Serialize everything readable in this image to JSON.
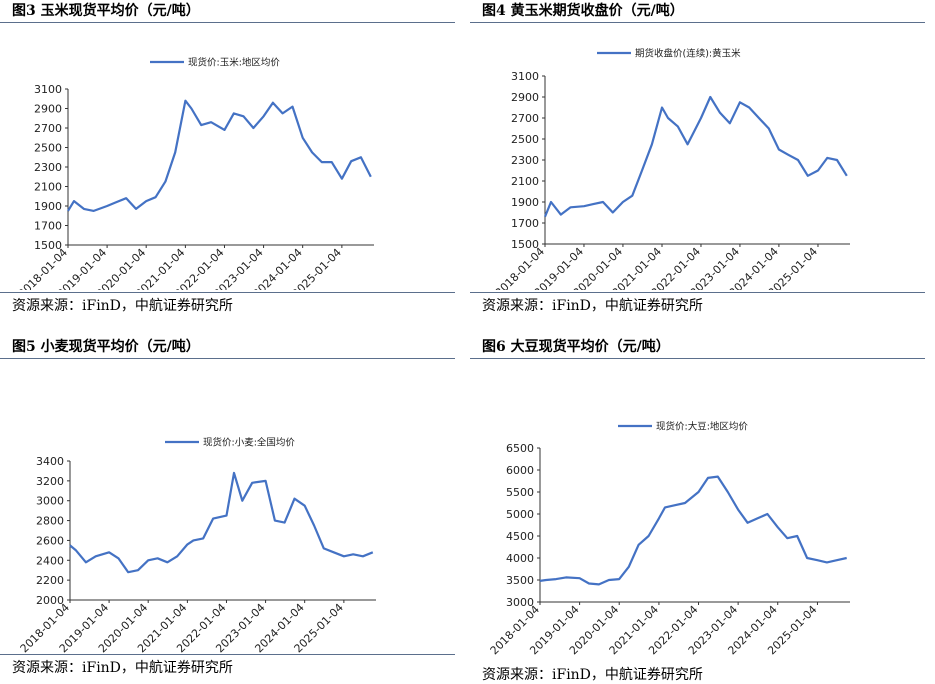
{
  "panels": [
    {
      "title": "图3  玉米现货平均价（元/吨）",
      "source": "资源来源：iFinD，中航证券研究所"
    },
    {
      "title": "图4  黄玉米期货收盘价（元/吨）",
      "source": "资源来源：iFinD，中航证券研究所"
    },
    {
      "title": "图5  小麦现货平均价（元/吨）",
      "source": "资源来源：iFinD，中航证券研究所"
    },
    {
      "title": "图6  大豆现货平均价（元/吨）",
      "source": "资源来源：iFinD，中航证券研究所"
    }
  ],
  "chart_data": [
    {
      "type": "line",
      "title": "",
      "legend": "top-center",
      "grid": false,
      "line_color": "#4472C4",
      "ylim": [
        1500,
        3100
      ],
      "yticks": [
        1500,
        1700,
        1900,
        2100,
        2300,
        2500,
        2700,
        2900,
        3100
      ],
      "xlim": [
        "2018-01-04",
        "2025-10-31"
      ],
      "xticks": [
        "2018-01-04",
        "2019-01-04",
        "2020-01-04",
        "2021-01-04",
        "2022-01-04",
        "2023-01-04",
        "2024-01-04",
        "2025-01-04"
      ],
      "series": [
        {
          "name": "现货价:玉米:地区均价",
          "x": [
            "2018-01-04",
            "2018-03-01",
            "2018-06-01",
            "2018-09-01",
            "2019-01-04",
            "2019-04-01",
            "2019-07-01",
            "2019-10-01",
            "2020-01-04",
            "2020-04-01",
            "2020-07-01",
            "2020-10-01",
            "2021-01-04",
            "2021-03-01",
            "2021-06-01",
            "2021-09-01",
            "2022-01-04",
            "2022-04-01",
            "2022-07-01",
            "2022-10-01",
            "2023-01-04",
            "2023-04-01",
            "2023-07-01",
            "2023-10-01",
            "2024-01-04",
            "2024-04-01",
            "2024-07-01",
            "2024-10-01",
            "2025-01-04",
            "2025-04-01",
            "2025-07-01",
            "2025-10-01"
          ],
          "y": [
            1850,
            1950,
            1870,
            1850,
            1900,
            1940,
            1980,
            1870,
            1950,
            1990,
            2150,
            2450,
            2980,
            2900,
            2730,
            2760,
            2680,
            2850,
            2820,
            2700,
            2820,
            2960,
            2850,
            2920,
            2600,
            2450,
            2350,
            2350,
            2180,
            2360,
            2400,
            2200
          ]
        }
      ]
    },
    {
      "type": "line",
      "title": "",
      "legend": "top-center",
      "grid": false,
      "line_color": "#4472C4",
      "ylim": [
        1500,
        3100
      ],
      "yticks": [
        1500,
        1700,
        1900,
        2100,
        2300,
        2500,
        2700,
        2900,
        3100
      ],
      "xlim": [
        "2018-01-04",
        "2025-10-31"
      ],
      "xticks": [
        "2018-01-04",
        "2019-01-04",
        "2020-01-04",
        "2021-01-04",
        "2022-01-04",
        "2023-01-04",
        "2024-01-04",
        "2025-01-04"
      ],
      "series": [
        {
          "name": "期货收盘价(连续):黄玉米",
          "x": [
            "2018-01-04",
            "2018-03-01",
            "2018-06-01",
            "2018-09-01",
            "2019-01-04",
            "2019-04-01",
            "2019-07-01",
            "2019-10-01",
            "2020-01-04",
            "2020-04-01",
            "2020-07-01",
            "2020-10-01",
            "2021-01-04",
            "2021-03-01",
            "2021-06-01",
            "2021-09-01",
            "2022-01-04",
            "2022-04-01",
            "2022-07-01",
            "2022-10-01",
            "2023-01-04",
            "2023-04-01",
            "2023-07-01",
            "2023-10-01",
            "2024-01-04",
            "2024-04-01",
            "2024-07-01",
            "2024-10-01",
            "2025-01-04",
            "2025-04-01",
            "2025-07-01",
            "2025-10-01"
          ],
          "y": [
            1760,
            1900,
            1780,
            1850,
            1860,
            1880,
            1900,
            1800,
            1900,
            1960,
            2200,
            2450,
            2800,
            2700,
            2620,
            2450,
            2700,
            2900,
            2750,
            2650,
            2850,
            2800,
            2700,
            2600,
            2400,
            2350,
            2300,
            2150,
            2200,
            2320,
            2300,
            2150
          ]
        }
      ]
    },
    {
      "type": "line",
      "title": "",
      "legend": "top-center",
      "grid": false,
      "line_color": "#4472C4",
      "ylim": [
        2000,
        3400
      ],
      "yticks": [
        2000,
        2200,
        2400,
        2600,
        2800,
        3000,
        3200,
        3400
      ],
      "xlim": [
        "2018-01-04",
        "2025-10-31"
      ],
      "xticks": [
        "2018-01-04",
        "2019-01-04",
        "2020-01-04",
        "2021-01-04",
        "2022-01-04",
        "2023-01-04",
        "2024-01-04",
        "2025-01-04"
      ],
      "series": [
        {
          "name": "现货价:小麦:全国均价",
          "x": [
            "2018-01-04",
            "2018-03-01",
            "2018-06-01",
            "2018-09-01",
            "2019-01-04",
            "2019-04-01",
            "2019-07-01",
            "2019-10-01",
            "2020-01-04",
            "2020-04-01",
            "2020-07-01",
            "2020-10-01",
            "2021-01-04",
            "2021-03-01",
            "2021-06-01",
            "2021-09-01",
            "2022-01-04",
            "2022-03-15",
            "2022-06-01",
            "2022-09-01",
            "2023-01-04",
            "2023-04-01",
            "2023-07-01",
            "2023-10-01",
            "2024-01-04",
            "2024-04-01",
            "2024-07-01",
            "2024-10-01",
            "2025-01-04",
            "2025-04-01",
            "2025-07-01",
            "2025-10-01"
          ],
          "y": [
            2550,
            2500,
            2380,
            2440,
            2480,
            2420,
            2280,
            2300,
            2400,
            2420,
            2380,
            2440,
            2560,
            2600,
            2620,
            2820,
            2850,
            3280,
            3000,
            3180,
            3200,
            2800,
            2780,
            3020,
            2950,
            2750,
            2520,
            2480,
            2440,
            2460,
            2440,
            2480
          ]
        }
      ]
    },
    {
      "type": "line",
      "title": "",
      "legend": "top-center",
      "grid": false,
      "line_color": "#4472C4",
      "ylim": [
        3000,
        6500
      ],
      "yticks": [
        3000,
        3500,
        4000,
        4500,
        5000,
        5500,
        6000,
        6500
      ],
      "xlim": [
        "2018-01-04",
        "2025-10-31"
      ],
      "xticks": [
        "2018-01-04",
        "2019-01-04",
        "2020-01-04",
        "2021-01-04",
        "2022-01-04",
        "2023-01-04",
        "2024-01-04",
        "2025-01-04"
      ],
      "series": [
        {
          "name": "现货价:大豆:地区均价",
          "x": [
            "2018-01-04",
            "2018-03-01",
            "2018-06-01",
            "2018-09-01",
            "2019-01-04",
            "2019-04-01",
            "2019-07-01",
            "2019-10-01",
            "2020-01-04",
            "2020-04-01",
            "2020-07-01",
            "2020-10-01",
            "2021-01-04",
            "2021-03-01",
            "2021-06-01",
            "2021-09-01",
            "2022-01-04",
            "2022-04-01",
            "2022-07-01",
            "2022-10-01",
            "2023-01-04",
            "2023-04-01",
            "2023-07-01",
            "2023-10-01",
            "2024-01-04",
            "2024-04-01",
            "2024-07-01",
            "2024-10-01",
            "2025-01-04",
            "2025-04-01",
            "2025-07-01",
            "2025-10-01"
          ],
          "y": [
            3480,
            3500,
            3520,
            3560,
            3540,
            3420,
            3400,
            3500,
            3520,
            3800,
            4300,
            4500,
            4900,
            5150,
            5200,
            5250,
            5500,
            5820,
            5850,
            5500,
            5100,
            4800,
            4900,
            5000,
            4700,
            4450,
            4500,
            4000,
            3950,
            3900,
            3950,
            4000
          ]
        }
      ]
    }
  ]
}
